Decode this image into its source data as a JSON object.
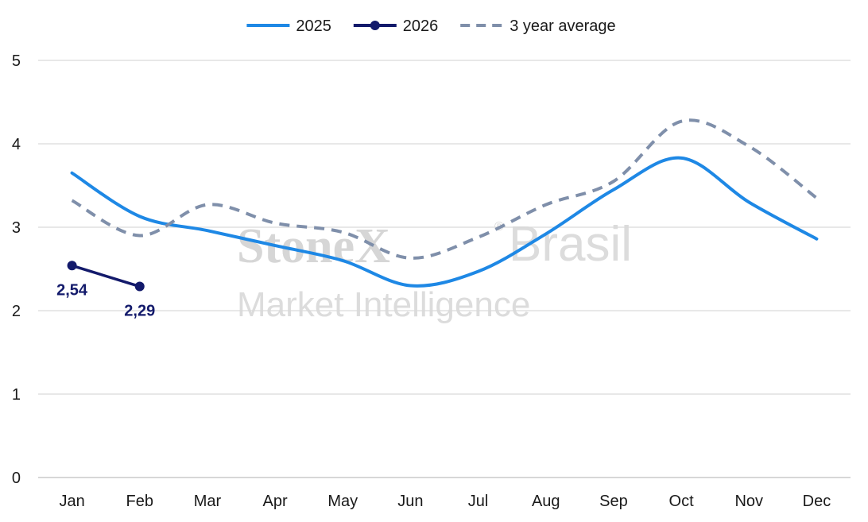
{
  "chart_data": {
    "type": "line",
    "categories": [
      "Jan",
      "Feb",
      "Mar",
      "Apr",
      "May",
      "Jun",
      "Jul",
      "Aug",
      "Sep",
      "Oct",
      "Nov",
      "Dec"
    ],
    "ylim": [
      0,
      5
    ],
    "yticks": [
      0,
      1,
      2,
      3,
      4,
      5
    ],
    "grid": true,
    "legend_position": "top-center",
    "series": [
      {
        "name": "2025",
        "style": "solid",
        "color": "#1e88e5",
        "values": [
          3.65,
          3.13,
          2.96,
          2.78,
          2.6,
          2.3,
          2.47,
          2.92,
          3.45,
          3.83,
          3.3,
          2.86
        ]
      },
      {
        "name": "2026",
        "style": "solid-markers",
        "color": "#131a6b",
        "values": [
          2.54,
          2.29,
          null,
          null,
          null,
          null,
          null,
          null,
          null,
          null,
          null,
          null
        ],
        "data_labels": [
          "2,54",
          "2,29"
        ]
      },
      {
        "name": "3 year average",
        "style": "dashed",
        "color": "#7f8faa",
        "values": [
          3.32,
          2.9,
          3.27,
          3.05,
          2.94,
          2.63,
          2.88,
          3.27,
          3.55,
          4.27,
          3.97,
          3.35
        ]
      }
    ]
  },
  "watermark": {
    "brand": "StoneX",
    "region": "Brasil",
    "tagline": "Market Intelligence",
    "registered": "®"
  }
}
